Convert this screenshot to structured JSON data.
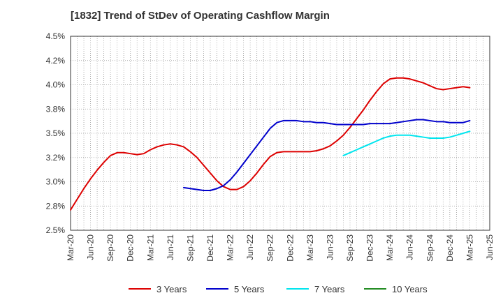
{
  "chart_data": {
    "type": "line",
    "title": "[1832]  Trend of StDev of Operating Cashflow Margin",
    "xlabel": "",
    "ylabel": "",
    "grid": true,
    "legend_position": "bottom",
    "y_ticks": [
      "4.5%",
      "4.2%",
      "4.0%",
      "3.8%",
      "3.5%",
      "3.2%",
      "3.0%",
      "2.8%",
      "2.5%"
    ],
    "ylim": [
      2.5,
      4.5
    ],
    "x_ticks": [
      "Mar-20",
      "Jun-20",
      "Sep-20",
      "Dec-20",
      "Mar-21",
      "Jun-21",
      "Sep-21",
      "Dec-21",
      "Mar-22",
      "Jun-22",
      "Sep-22",
      "Dec-22",
      "Mar-23",
      "Jun-23",
      "Sep-23",
      "Dec-23",
      "Mar-24",
      "Jun-24",
      "Sep-24",
      "Dec-24",
      "Mar-25",
      "Jun-25"
    ],
    "series": [
      {
        "name": "3 Years",
        "color": "#dd0000",
        "x": [
          "Mar-20",
          "Apr-20",
          "May-20",
          "Jun-20",
          "Jul-20",
          "Aug-20",
          "Sep-20",
          "Oct-20",
          "Nov-20",
          "Dec-20",
          "Jan-21",
          "Feb-21",
          "Mar-21",
          "Apr-21",
          "May-21",
          "Jun-21",
          "Jul-21",
          "Aug-21",
          "Sep-21",
          "Oct-21",
          "Nov-21",
          "Dec-21",
          "Jan-22",
          "Feb-22",
          "Mar-22",
          "Apr-22",
          "May-22",
          "Jun-22",
          "Jul-22",
          "Aug-22",
          "Sep-22",
          "Oct-22",
          "Nov-22",
          "Dec-22",
          "Jan-23",
          "Feb-23",
          "Mar-23",
          "Apr-23",
          "May-23",
          "Jun-23",
          "Jul-23",
          "Aug-23",
          "Sep-23",
          "Oct-23",
          "Nov-23",
          "Dec-23",
          "Jan-24",
          "Feb-24",
          "Mar-24",
          "Apr-24",
          "May-24",
          "Jun-24",
          "Jul-24",
          "Aug-24",
          "Sep-24",
          "Oct-24",
          "Nov-24",
          "Dec-24",
          "Jan-25",
          "Feb-25",
          "Mar-25"
        ],
        "values": [
          2.71,
          2.82,
          2.93,
          3.03,
          3.12,
          3.2,
          3.27,
          3.3,
          3.3,
          3.29,
          3.28,
          3.29,
          3.33,
          3.36,
          3.38,
          3.39,
          3.38,
          3.36,
          3.31,
          3.25,
          3.17,
          3.09,
          3.01,
          2.95,
          2.92,
          2.92,
          2.95,
          3.01,
          3.09,
          3.18,
          3.26,
          3.3,
          3.31,
          3.31,
          3.31,
          3.31,
          3.31,
          3.32,
          3.34,
          3.37,
          3.42,
          3.48,
          3.56,
          3.65,
          3.74,
          3.84,
          3.93,
          4.01,
          4.06,
          4.07,
          4.07,
          4.06,
          4.04,
          4.02,
          3.99,
          3.96,
          3.95,
          3.96,
          3.97,
          3.98,
          3.97
        ]
      },
      {
        "name": "5 Years",
        "color": "#0000cc",
        "x": [
          "Aug-21",
          "Sep-21",
          "Oct-21",
          "Nov-21",
          "Dec-21",
          "Jan-22",
          "Feb-22",
          "Mar-22",
          "Apr-22",
          "May-22",
          "Jun-22",
          "Jul-22",
          "Aug-22",
          "Sep-22",
          "Oct-22",
          "Nov-22",
          "Dec-22",
          "Jan-23",
          "Feb-23",
          "Mar-23",
          "Apr-23",
          "May-23",
          "Jun-23",
          "Jul-23",
          "Aug-23",
          "Sep-23",
          "Oct-23",
          "Nov-23",
          "Dec-23",
          "Jan-24",
          "Feb-24",
          "Mar-24",
          "Apr-24",
          "May-24",
          "Jun-24",
          "Jul-24",
          "Aug-24",
          "Sep-24",
          "Oct-24",
          "Nov-24",
          "Dec-24",
          "Jan-25",
          "Feb-25",
          "Mar-25"
        ],
        "values": [
          2.94,
          2.93,
          2.92,
          2.91,
          2.91,
          2.93,
          2.96,
          3.02,
          3.1,
          3.19,
          3.28,
          3.37,
          3.46,
          3.55,
          3.61,
          3.63,
          3.63,
          3.63,
          3.62,
          3.62,
          3.61,
          3.61,
          3.6,
          3.59,
          3.59,
          3.59,
          3.59,
          3.59,
          3.6,
          3.6,
          3.6,
          3.6,
          3.61,
          3.62,
          3.63,
          3.64,
          3.64,
          3.63,
          3.62,
          3.62,
          3.61,
          3.61,
          3.61,
          3.63
        ]
      },
      {
        "name": "7 Years",
        "color": "#00e5ee",
        "x": [
          "Aug-23",
          "Sep-23",
          "Oct-23",
          "Nov-23",
          "Dec-23",
          "Jan-24",
          "Feb-24",
          "Mar-24",
          "Apr-24",
          "May-24",
          "Jun-24",
          "Jul-24",
          "Aug-24",
          "Sep-24",
          "Oct-24",
          "Nov-24",
          "Dec-24",
          "Jan-25",
          "Feb-25",
          "Mar-25"
        ],
        "values": [
          3.27,
          3.3,
          3.33,
          3.36,
          3.39,
          3.42,
          3.45,
          3.47,
          3.48,
          3.48,
          3.48,
          3.47,
          3.46,
          3.45,
          3.45,
          3.45,
          3.46,
          3.48,
          3.5,
          3.52
        ]
      },
      {
        "name": "10 Years",
        "color": "#228b22",
        "x": [],
        "values": []
      }
    ]
  }
}
